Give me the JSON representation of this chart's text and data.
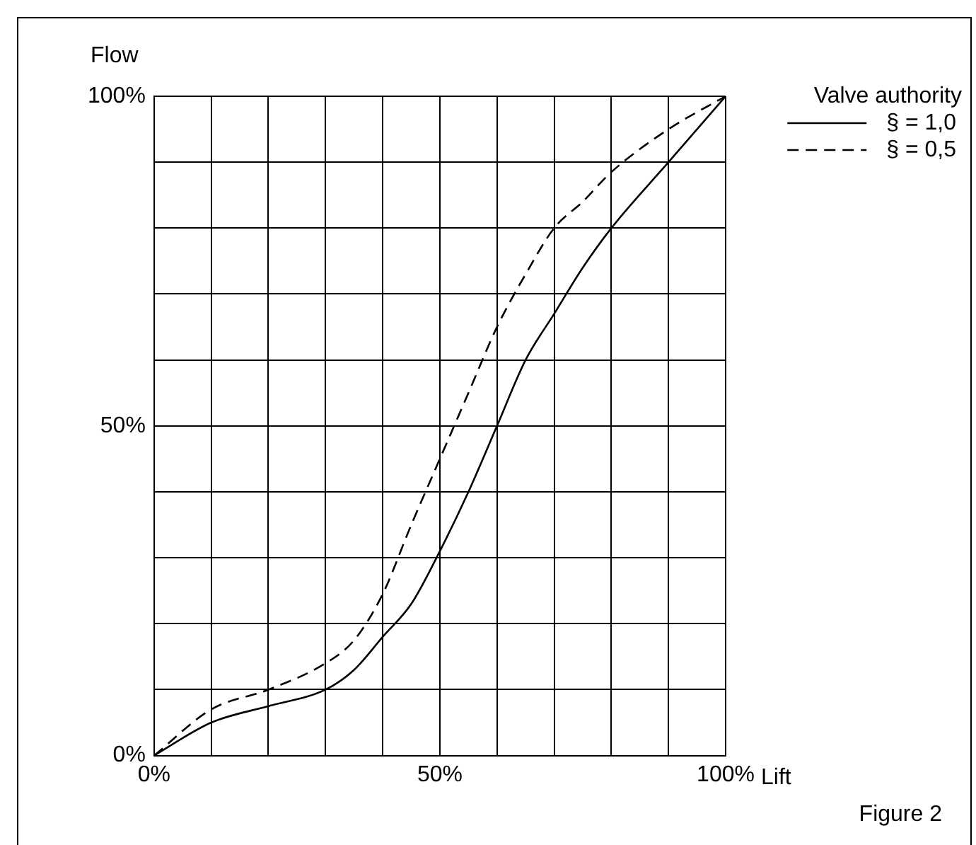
{
  "chart_data": {
    "type": "line",
    "xlabel": "Lift",
    "ylabel": "Flow",
    "legend_title": "Valve authority",
    "legend": "top right",
    "grid": true,
    "marker": "none",
    "x": [
      0,
      10,
      20,
      30,
      35,
      40,
      45,
      50,
      55,
      60,
      65,
      70,
      75,
      80,
      90,
      100
    ],
    "xlim": [
      0,
      100
    ],
    "ylim": [
      0,
      100
    ],
    "xticks": [
      {
        "value": 0,
        "label": "0%"
      },
      {
        "value": 10,
        "label": null
      },
      {
        "value": 20,
        "label": null
      },
      {
        "value": 30,
        "label": null
      },
      {
        "value": 40,
        "label": null
      },
      {
        "value": 50,
        "label": "50%"
      },
      {
        "value": 60,
        "label": null
      },
      {
        "value": 70,
        "label": null
      },
      {
        "value": 80,
        "label": null
      },
      {
        "value": 90,
        "label": null
      },
      {
        "value": 100,
        "label": "100%"
      }
    ],
    "yticks": [
      {
        "value": 0,
        "label": "0%"
      },
      {
        "value": 10,
        "label": null
      },
      {
        "value": 20,
        "label": null
      },
      {
        "value": 30,
        "label": null
      },
      {
        "value": 40,
        "label": null
      },
      {
        "value": 50,
        "label": "50%"
      },
      {
        "value": 60,
        "label": null
      },
      {
        "value": 70,
        "label": null
      },
      {
        "value": 80,
        "label": null
      },
      {
        "value": 90,
        "label": null
      },
      {
        "value": 100,
        "label": "100%"
      }
    ],
    "series": [
      {
        "name": "§ = 1,0",
        "color": "#000000",
        "line_style": "solid",
        "values": [
          0,
          5,
          7.5,
          10,
          13,
          18,
          23,
          31,
          40,
          50,
          60,
          67,
          74,
          80,
          90,
          100
        ]
      },
      {
        "name": "§ = 0,5",
        "color": "#000000",
        "line_style": "dashed",
        "values": [
          0,
          7,
          10,
          14,
          17.5,
          24.5,
          35,
          45,
          55,
          65,
          73,
          80,
          84,
          88.5,
          95,
          100
        ]
      }
    ],
    "annotations": [
      "Figure 2"
    ]
  }
}
